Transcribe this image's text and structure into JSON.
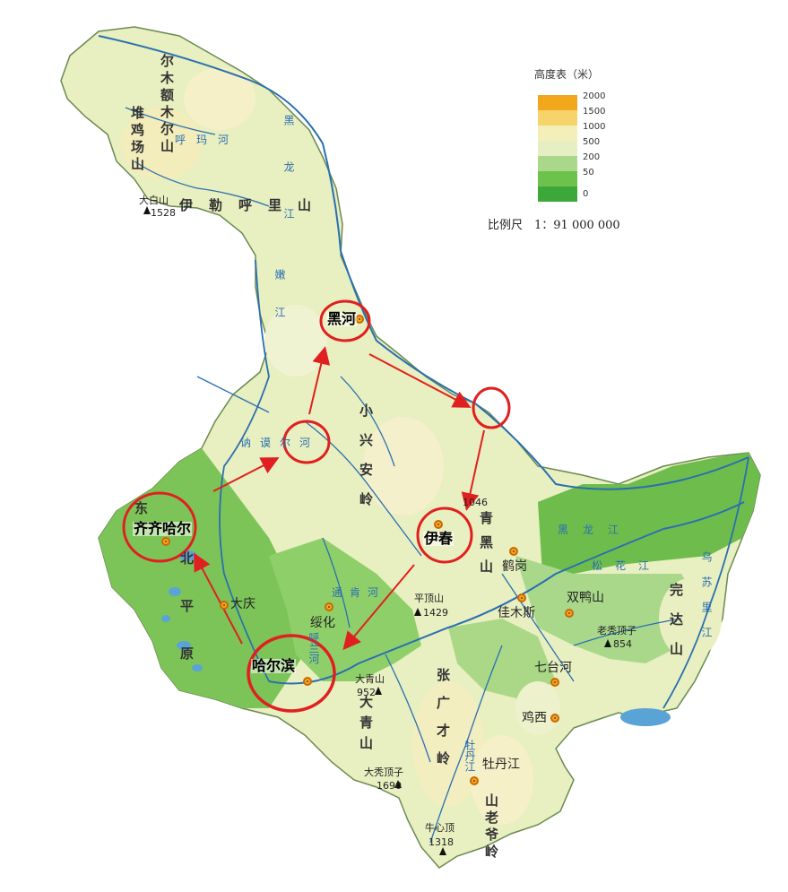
{
  "legend": {
    "title": "高度表（米）",
    "levels": [
      {
        "label": "2000",
        "color": "#f2a81d"
      },
      {
        "label": "1500",
        "color": "#f7d36b"
      },
      {
        "label": "1000",
        "color": "#f4efb9"
      },
      {
        "label": "500",
        "color": "#e6efc4"
      },
      {
        "label": "200",
        "color": "#a9d88a"
      },
      {
        "label": "50",
        "color": "#6cc24a"
      },
      {
        "label": "0",
        "color": "#3da83a"
      }
    ]
  },
  "scale": "比例尺　1：91 000 000",
  "cities": {
    "heihe": "黑河",
    "qiqihar": "齐齐哈尔",
    "daqing": "大庆",
    "harbin": "哈尔滨",
    "suihua": "绥化",
    "yichun": "伊春",
    "hegang": "鹤岗",
    "jiamusi": "佳木斯",
    "shuangyashan": "双鸭山",
    "qitaihe": "七台河",
    "jixi": "鸡西",
    "mudanjiang": "牡丹江"
  },
  "peaks": {
    "dabaishan": "大白山",
    "dabaishan_h": "1528",
    "pingdingshan_n": "1046",
    "pingdingshan": "平顶山",
    "pingdingshan_h": "1429",
    "laoxiudingzi": "老秃顶子",
    "laoxiudingzi_h": "854",
    "daqingshan": "大青山",
    "daqingshan_h": "952",
    "daxiudingzi": "大秃顶子",
    "daxiudingzi_h": "1690",
    "niuxinding": "牛心顶",
    "niuxinding_h": "1318",
    "daqingshan2": "大青山"
  },
  "ranges": {
    "erguna": "尔木额木尔山",
    "yilehuli": "伊勒呼里山",
    "xiaoxinganling": "小兴安岭",
    "zhangguangcai": "张广才岭",
    "qinghei": "青黑山",
    "laoyeling": "山老爷岭",
    "wandashan": "完达山",
    "songnen": "北平原",
    "dongbei": "东",
    "yalu": "堆鸡场山"
  },
  "rivers": {
    "heilongjiang": "黑龙江",
    "wusulijiang": "乌苏里江",
    "songhuajiang": "松花江",
    "nenjiang": "嫩江",
    "huma": "呼玛河",
    "nemo": "讷谟尔河",
    "tongken": "通肯河",
    "hulan": "呼兰河",
    "mudan": "牡丹江"
  },
  "route_markers": {
    "circles": [
      "heihe",
      "river-junction-east",
      "river-junction-west",
      "yichun",
      "harbin",
      "qiqihar"
    ]
  }
}
